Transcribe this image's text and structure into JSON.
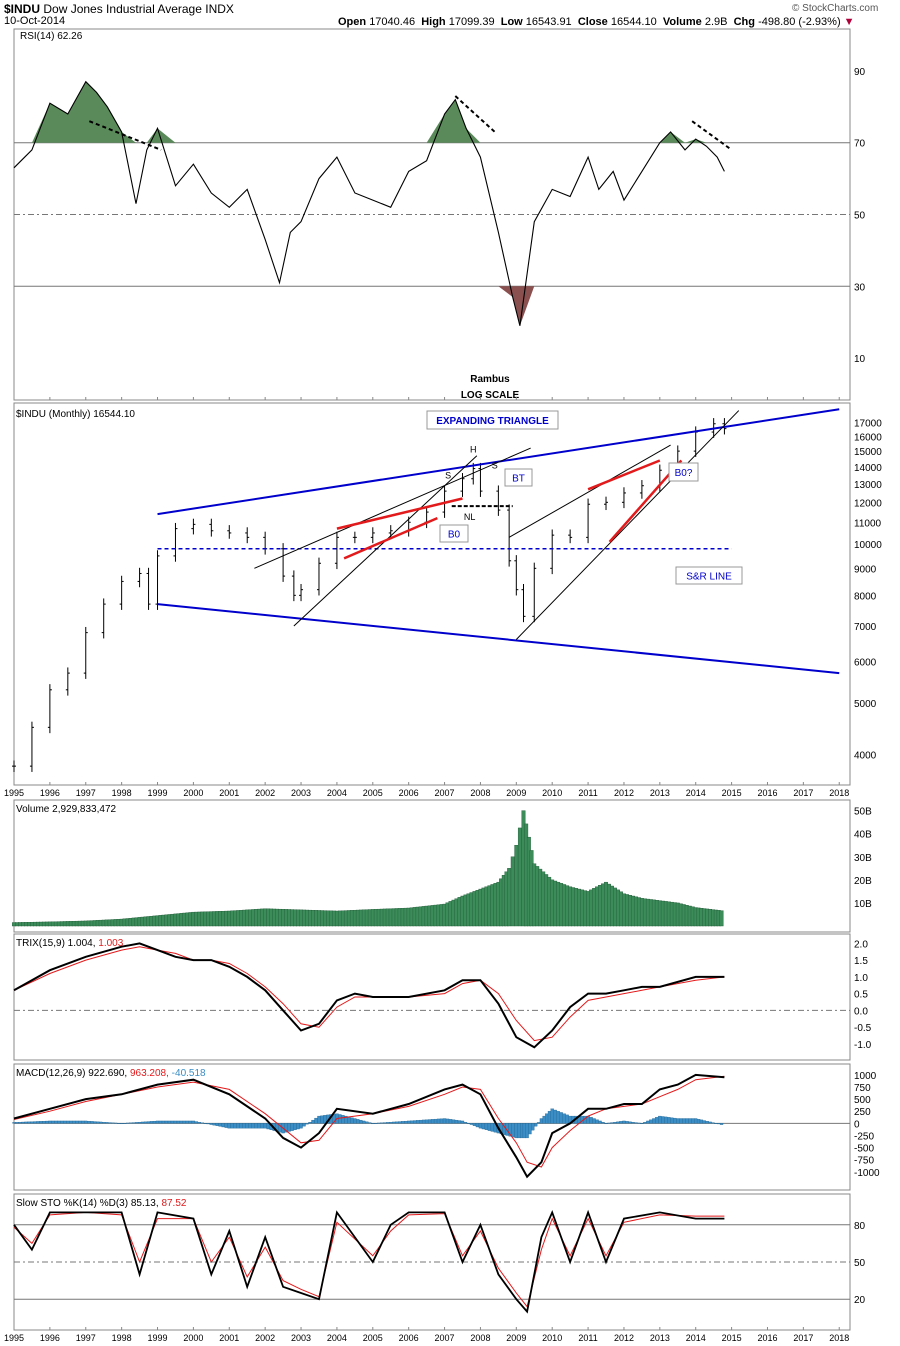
{
  "header": {
    "symbol": "$INDU",
    "name": "Dow Jones Industrial Average",
    "exchange": "INDX",
    "date": "10-Oct-2014",
    "watermark": "© StockCharts.com",
    "open_label": "Open",
    "open": "17040.46",
    "high_label": "High",
    "high": "17099.39",
    "low_label": "Low",
    "low": "16543.91",
    "close_label": "Close",
    "close": "16544.10",
    "volume_label": "Volume",
    "volume": "2.9B",
    "chg_label": "Chg",
    "chg": "-498.80 (-2.93%)"
  },
  "chart_data": [
    {
      "id": "rsi",
      "type": "line",
      "title": "RSI(14) 62.26",
      "ylim": [
        0,
        100
      ],
      "yticks": [
        10,
        30,
        50,
        70,
        90
      ],
      "ref_lines": [
        30,
        50,
        70
      ],
      "x": [
        1995,
        1995.5,
        1996,
        1996.5,
        1997,
        1997.3,
        1997.6,
        1998,
        1998.4,
        1998.7,
        1999,
        1999.5,
        2000,
        2000.5,
        2001,
        2001.5,
        2002,
        2002.4,
        2002.7,
        2003,
        2003.5,
        2004,
        2004.5,
        2005,
        2005.5,
        2006,
        2006.5,
        2007,
        2007.3,
        2007.6,
        2008,
        2008.5,
        2008.9,
        2009.1,
        2009.5,
        2010,
        2010.5,
        2011,
        2011.3,
        2011.7,
        2012,
        2012.5,
        2013,
        2013.3,
        2013.7,
        2014,
        2014.3,
        2014.6,
        2014.8
      ],
      "values": [
        63,
        68,
        81,
        78,
        87,
        84,
        80,
        73,
        53,
        68,
        74,
        58,
        64,
        56,
        52,
        57,
        43,
        31,
        45,
        48,
        60,
        66,
        56,
        54,
        52,
        62,
        65,
        78,
        82,
        74,
        66,
        45,
        27,
        19,
        48,
        57,
        55,
        66,
        57,
        62,
        54,
        62,
        70,
        73,
        68,
        71,
        69,
        66,
        62
      ],
      "annotations": [
        "Rambus",
        "LOG SCALE"
      ]
    },
    {
      "id": "price",
      "type": "ohlc",
      "title": "$INDU (Monthly) 16544.10",
      "scale": "log",
      "yticks": [
        4000,
        5000,
        6000,
        7000,
        8000,
        9000,
        10000,
        11000,
        12000,
        13000,
        14000,
        15000,
        16000,
        17000
      ],
      "x": [
        1995,
        1995.5,
        1996,
        1996.5,
        1997,
        1997.5,
        1998,
        1998.5,
        1998.75,
        1999,
        1999.5,
        2000,
        2000.5,
        2001,
        2001.5,
        2002,
        2002.5,
        2002.8,
        2003,
        2003.5,
        2004,
        2004.5,
        2005,
        2005.5,
        2006,
        2006.5,
        2007,
        2007.5,
        2007.8,
        2008,
        2008.5,
        2008.8,
        2009,
        2009.2,
        2009.5,
        2010,
        2010.5,
        2011,
        2011.5,
        2012,
        2012.5,
        2013,
        2013.5,
        2014,
        2014.5,
        2014.8
      ],
      "values": [
        3800,
        4500,
        5300,
        5700,
        6800,
        7700,
        8500,
        8800,
        7700,
        9500,
        10700,
        10900,
        10600,
        10500,
        10300,
        9800,
        8700,
        8000,
        8200,
        9200,
        10300,
        10300,
        10500,
        10600,
        11000,
        11500,
        12600,
        13300,
        13900,
        12600,
        11600,
        9300,
        8200,
        7300,
        9000,
        10400,
        10300,
        11900,
        12000,
        12500,
        12900,
        13800,
        15000,
        16300,
        16900,
        16544
      ],
      "annotations": [
        "EXPANDING TRIANGLE",
        "H",
        "S",
        "S",
        "NL",
        "BT",
        "B0",
        "B0?",
        "S&R LINE"
      ]
    },
    {
      "id": "volume",
      "type": "bar",
      "title": "Volume 2,929,833,472",
      "ylim": [
        0,
        52
      ],
      "ylabel_unit": "B",
      "yticks": [
        "10B",
        "20B",
        "30B",
        "40B",
        "50B"
      ],
      "x": [
        1995,
        1996,
        1997,
        1998,
        1999,
        2000,
        2001,
        2002,
        2003,
        2004,
        2005,
        2006,
        2007,
        2007.5,
        2008,
        2008.5,
        2008.8,
        2009,
        2009.2,
        2009.5,
        2010,
        2010.5,
        2011,
        2011.5,
        2012,
        2012.5,
        2013,
        2013.5,
        2014,
        2014.8
      ],
      "values": [
        1.5,
        1.8,
        2.2,
        3.0,
        4.5,
        6.0,
        6.5,
        7.5,
        7.0,
        6.5,
        7.2,
        7.8,
        9.5,
        13.0,
        16.0,
        19.0,
        25.0,
        35.0,
        50.0,
        27.0,
        20.0,
        17.0,
        15.0,
        19.0,
        14.0,
        12.0,
        11.0,
        10.0,
        8.0,
        6.5
      ]
    },
    {
      "id": "trix",
      "type": "line",
      "title": "TRIX(15,9) 1.004,",
      "signal_label": "1.003",
      "ylim": [
        -1.3,
        2.1
      ],
      "yticks": [
        "2.0",
        "1.5",
        "1.0",
        "0.5",
        "0.0",
        "-0.5",
        "-1.0"
      ],
      "ref_lines": [
        0.0
      ],
      "x": [
        1995,
        1996,
        1997,
        1998,
        1998.5,
        1999,
        1999.5,
        2000,
        2000.5,
        2001,
        2001.5,
        2002,
        2002.5,
        2003,
        2003.5,
        2004,
        2004.5,
        2005,
        2006,
        2007,
        2007.5,
        2008,
        2008.5,
        2009,
        2009.5,
        2010,
        2010.5,
        2011,
        2011.5,
        2012,
        2012.5,
        2013,
        2014,
        2014.8
      ],
      "series": [
        {
          "name": "TRIX",
          "color": "#000000",
          "values": [
            0.6,
            1.2,
            1.6,
            1.9,
            2.0,
            1.8,
            1.6,
            1.5,
            1.5,
            1.3,
            1.0,
            0.6,
            0.0,
            -0.6,
            -0.4,
            0.3,
            0.5,
            0.4,
            0.4,
            0.6,
            0.9,
            0.9,
            0.2,
            -0.8,
            -1.1,
            -0.6,
            0.1,
            0.5,
            0.5,
            0.6,
            0.7,
            0.7,
            1.0,
            1.0
          ]
        },
        {
          "name": "Signal",
          "color": "#e31a1c",
          "values": [
            0.6,
            1.1,
            1.5,
            1.8,
            1.9,
            1.8,
            1.7,
            1.5,
            1.5,
            1.4,
            1.1,
            0.7,
            0.2,
            -0.4,
            -0.5,
            0.1,
            0.4,
            0.4,
            0.4,
            0.5,
            0.8,
            0.9,
            0.5,
            -0.3,
            -0.9,
            -0.8,
            -0.2,
            0.3,
            0.4,
            0.5,
            0.6,
            0.7,
            0.9,
            1.0
          ]
        }
      ]
    },
    {
      "id": "macd",
      "type": "line",
      "title": "MACD(12,26,9)",
      "macd_label": "922.690,",
      "signal_label": "963.208,",
      "hist_label": "-40.518",
      "ylim": [
        -1250,
        1100
      ],
      "yticks": [
        "1000",
        "750",
        "500",
        "250",
        "0",
        "-250",
        "-500",
        "-750",
        "-1000"
      ],
      "ref_lines": [
        0
      ],
      "x": [
        1995,
        1996,
        1997,
        1998,
        1999,
        2000,
        2001,
        2002,
        2002.5,
        2003,
        2003.5,
        2004,
        2005,
        2006,
        2007,
        2007.5,
        2008,
        2008.5,
        2009,
        2009.3,
        2009.7,
        2010,
        2010.5,
        2011,
        2011.5,
        2012,
        2012.5,
        2013,
        2013.5,
        2014,
        2014.8
      ],
      "series": [
        {
          "name": "MACD",
          "color": "#000000",
          "values": [
            100,
            300,
            500,
            600,
            800,
            900,
            600,
            100,
            -300,
            -500,
            -200,
            300,
            200,
            400,
            700,
            800,
            600,
            -100,
            -700,
            -1100,
            -800,
            -200,
            0,
            300,
            300,
            400,
            400,
            700,
            800,
            1000,
            950
          ]
        },
        {
          "name": "Signal",
          "color": "#e31a1c",
          "values": [
            80,
            250,
            450,
            600,
            750,
            850,
            700,
            200,
            -100,
            -400,
            -350,
            100,
            200,
            350,
            600,
            750,
            700,
            100,
            -400,
            -800,
            -900,
            -500,
            -150,
            150,
            300,
            350,
            400,
            550,
            700,
            900,
            970
          ]
        },
        {
          "name": "Histogram",
          "color": "#3a8dc5",
          "values": [
            20,
            50,
            50,
            0,
            50,
            50,
            -100,
            -100,
            -200,
            -100,
            150,
            200,
            0,
            50,
            100,
            50,
            -100,
            -200,
            -300,
            -300,
            100,
            300,
            150,
            150,
            0,
            50,
            0,
            150,
            100,
            100,
            -40
          ]
        }
      ]
    },
    {
      "id": "slowsto",
      "type": "line",
      "title": "Slow STO %K(14) %D(3)",
      "k_label": "85.13,",
      "d_label": "87.52",
      "ylim": [
        0,
        100
      ],
      "yticks": [
        20,
        50,
        80
      ],
      "ref_lines": [
        20,
        50,
        80
      ],
      "x": [
        1995,
        1995.5,
        1996,
        1997,
        1998,
        1998.5,
        1999,
        2000,
        2000.5,
        2001,
        2001.5,
        2002,
        2002.5,
        2003,
        2003.5,
        2004,
        2005,
        2005.5,
        2006,
        2007,
        2007.5,
        2008,
        2008.5,
        2009,
        2009.3,
        2009.7,
        2010,
        2010.5,
        2011,
        2011.5,
        2012,
        2013,
        2014,
        2014.8
      ],
      "series": [
        {
          "name": "%K",
          "color": "#000000",
          "values": [
            80,
            60,
            90,
            90,
            90,
            40,
            90,
            85,
            40,
            75,
            30,
            70,
            30,
            25,
            20,
            90,
            50,
            80,
            90,
            90,
            50,
            80,
            40,
            20,
            10,
            70,
            90,
            50,
            90,
            50,
            85,
            90,
            85,
            85
          ]
        },
        {
          "name": "%D",
          "color": "#e31a1c",
          "values": [
            78,
            65,
            88,
            90,
            88,
            50,
            85,
            85,
            50,
            70,
            38,
            62,
            35,
            28,
            22,
            82,
            55,
            75,
            88,
            89,
            55,
            75,
            45,
            25,
            14,
            60,
            85,
            55,
            85,
            55,
            82,
            88,
            87,
            87
          ]
        }
      ]
    }
  ],
  "x_axis": {
    "years": [
      "1995",
      "1996",
      "1997",
      "1998",
      "1999",
      "2000",
      "2001",
      "2002",
      "2003",
      "2004",
      "2005",
      "2006",
      "2007",
      "2008",
      "2009",
      "2010",
      "2011",
      "2012",
      "2013",
      "2014",
      "2015",
      "2016",
      "2017",
      "2018"
    ]
  },
  "colors": {
    "rsi_fill_over": "#5a8a5a",
    "rsi_fill_under": "#8a4f4f",
    "trendline_blue": "#0000cc",
    "trendline_red": "#e31a1c",
    "volume_bar": "#3c8c5a",
    "macd_hist": "#3a8dc5"
  }
}
